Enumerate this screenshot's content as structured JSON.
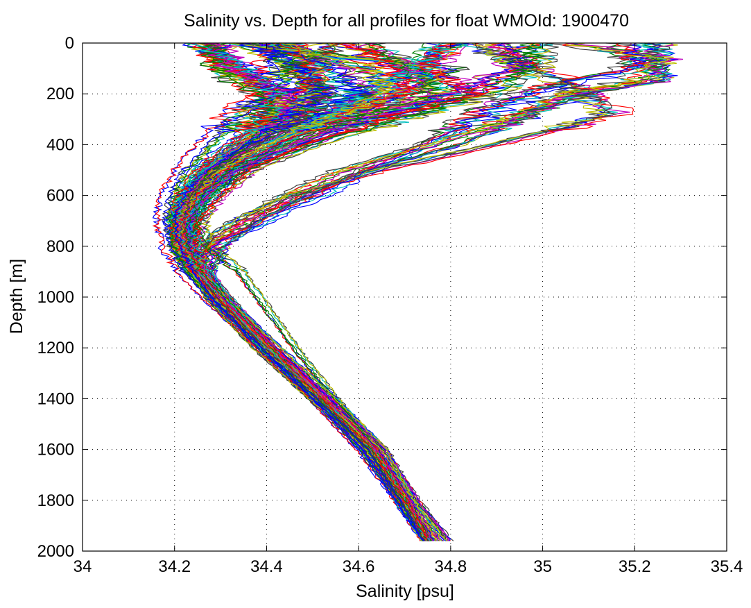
{
  "chart_data": {
    "type": "line",
    "title": "Salinity vs. Depth for all profiles for float WMOId: 1900470",
    "xlabel": "Salinity [psu]",
    "ylabel": "Depth [m]",
    "xlim": [
      34,
      35.4
    ],
    "ylim": [
      0,
      2000
    ],
    "y_reversed": true,
    "grid": true,
    "x_ticks": [
      "34",
      "34.2",
      "34.4",
      "34.6",
      "34.8",
      "35",
      "35.2",
      "35.4"
    ],
    "y_ticks": [
      "0",
      "200",
      "400",
      "600",
      "800",
      "1000",
      "1200",
      "1400",
      "1600",
      "1800",
      "2000"
    ],
    "profile_count_note": "many overlapping float profiles (about 150), colors cycle through the standard plot palette",
    "colors": [
      "#0000ff",
      "#008000",
      "#ff0000",
      "#00bfbf",
      "#bf00bf",
      "#bfbf00",
      "#404040"
    ],
    "series": [
      {
        "color": "#0000ff",
        "depth": [
          0,
          100,
          200,
          300,
          400,
          500,
          600,
          700,
          800,
          900,
          1000,
          1200,
          1400,
          1600,
          1800,
          1960
        ],
        "salinity": [
          34.43,
          34.42,
          34.4,
          34.33,
          34.27,
          34.22,
          34.19,
          34.18,
          34.19,
          34.22,
          34.27,
          34.39,
          34.5,
          34.6,
          34.68,
          34.74
        ]
      },
      {
        "color": "#0000ff",
        "depth": [
          0,
          100,
          180,
          250,
          300,
          400,
          500,
          600,
          650,
          700,
          800,
          900,
          1000,
          1200,
          1400,
          1600,
          1800,
          1960
        ],
        "salinity": [
          35.2,
          35.2,
          35.0,
          34.9,
          34.85,
          34.75,
          34.62,
          34.52,
          34.45,
          34.4,
          34.28,
          34.25,
          34.28,
          34.38,
          34.5,
          34.61,
          34.69,
          34.75
        ]
      },
      {
        "color": "#404040",
        "depth": [
          0,
          150,
          200,
          250,
          300,
          400,
          500,
          600,
          700,
          800,
          900,
          1000,
          1200,
          1400,
          1600,
          1800,
          1960
        ],
        "salinity": [
          35.25,
          35.25,
          35.1,
          35.0,
          34.95,
          34.82,
          34.62,
          34.48,
          34.38,
          34.31,
          34.28,
          34.3,
          34.39,
          34.51,
          34.62,
          34.69,
          34.75
        ]
      },
      {
        "color": "#bfbf00",
        "depth": [
          0,
          60,
          150,
          200,
          260,
          300,
          400,
          500,
          600,
          700,
          800,
          900,
          1000,
          1200,
          1400,
          1600,
          1800,
          1960
        ],
        "salinity": [
          35.05,
          35.25,
          35.2,
          35.05,
          34.98,
          34.92,
          34.75,
          34.56,
          34.44,
          34.34,
          34.27,
          34.25,
          34.28,
          34.39,
          34.52,
          34.64,
          34.71,
          34.77
        ]
      },
      {
        "color": "#404040",
        "depth": [
          0,
          150,
          200,
          270,
          300,
          400,
          500,
          600,
          700,
          800,
          900,
          1000,
          1200,
          1400,
          1600,
          1800,
          1960
        ],
        "salinity": [
          34.85,
          35.05,
          35.1,
          35.15,
          35.12,
          34.9,
          34.65,
          34.46,
          34.34,
          34.26,
          34.25,
          34.28,
          34.38,
          34.5,
          34.62,
          34.7,
          34.75
        ]
      },
      {
        "color": "#bfbf00",
        "depth": [
          0,
          100,
          200,
          300,
          400,
          500,
          600,
          700,
          800,
          900,
          1000,
          1200,
          1400,
          1600,
          1800,
          1960
        ],
        "salinity": [
          34.32,
          34.8,
          34.7,
          34.55,
          34.4,
          34.3,
          34.24,
          34.21,
          34.22,
          34.25,
          34.3,
          34.41,
          34.53,
          34.65,
          34.72,
          34.79
        ]
      },
      {
        "color": "#bf00bf",
        "depth": [
          0,
          100,
          200,
          300,
          400,
          500,
          600,
          700,
          800,
          900,
          1000,
          1200,
          1400,
          1600,
          1800,
          1960
        ],
        "salinity": [
          34.92,
          34.95,
          34.8,
          34.62,
          34.46,
          34.34,
          34.27,
          34.23,
          34.22,
          34.25,
          34.3,
          34.42,
          34.54,
          34.66,
          34.73,
          34.8
        ]
      },
      {
        "color": "#008000",
        "depth": [
          0,
          100,
          200,
          300,
          400,
          500,
          600,
          700,
          800,
          900,
          1000,
          1200,
          1400,
          1600,
          1800,
          1960
        ],
        "salinity": [
          34.98,
          34.97,
          34.88,
          34.68,
          34.5,
          34.36,
          34.28,
          34.25,
          34.27,
          34.34,
          34.38,
          34.46,
          34.55,
          34.64,
          34.71,
          34.76
        ]
      },
      {
        "color": "#ff0000",
        "depth": [
          0,
          100,
          200,
          300,
          400,
          500,
          600,
          700,
          800,
          900,
          1000,
          1200,
          1400,
          1600,
          1800,
          1960
        ],
        "salinity": [
          34.79,
          34.75,
          34.85,
          34.65,
          34.48,
          34.36,
          34.3,
          34.25,
          34.24,
          34.27,
          34.31,
          34.42,
          34.53,
          34.64,
          34.71,
          34.75
        ]
      },
      {
        "color": "#00bfbf",
        "depth": [
          0,
          100,
          200,
          300,
          400,
          500,
          600,
          700,
          800,
          900,
          1000,
          1200,
          1400,
          1600,
          1800,
          1960
        ],
        "salinity": [
          34.8,
          34.72,
          34.6,
          34.52,
          34.42,
          34.32,
          34.26,
          34.23,
          34.24,
          34.27,
          34.31,
          34.41,
          34.52,
          34.63,
          34.7,
          34.75
        ]
      },
      {
        "color": "#008000",
        "depth": [
          0,
          100,
          200,
          300,
          400,
          500,
          600,
          700,
          800,
          900,
          1000,
          1200,
          1400,
          1600,
          1800,
          1960
        ],
        "salinity": [
          34.29,
          34.3,
          34.38,
          34.42,
          34.36,
          34.28,
          34.23,
          34.2,
          34.2,
          34.23,
          34.28,
          34.39,
          34.51,
          34.62,
          34.69,
          34.74
        ]
      },
      {
        "color": "#ff0000",
        "depth": [
          0,
          100,
          200,
          300,
          400,
          500,
          600,
          700,
          800,
          900,
          1000,
          1200,
          1400,
          1600,
          1800,
          1960
        ],
        "salinity": [
          34.45,
          34.5,
          34.48,
          34.4,
          34.33,
          34.26,
          34.22,
          34.2,
          34.21,
          34.24,
          34.29,
          34.4,
          34.52,
          34.63,
          34.7,
          34.75
        ]
      },
      {
        "color": "#0000ff",
        "depth": [
          0,
          100,
          200,
          300,
          400,
          500,
          600,
          700,
          800,
          900,
          1000,
          1200,
          1400,
          1600,
          1800,
          1960
        ],
        "salinity": [
          34.4,
          34.55,
          34.6,
          34.48,
          34.36,
          34.27,
          34.22,
          34.2,
          34.21,
          34.24,
          34.28,
          34.39,
          34.5,
          34.61,
          34.68,
          34.74
        ]
      },
      {
        "color": "#bf00bf",
        "depth": [
          0,
          100,
          200,
          300,
          400,
          500,
          600,
          700,
          800,
          900,
          1000,
          1200,
          1400,
          1600,
          1800,
          1960
        ],
        "salinity": [
          34.27,
          34.32,
          34.45,
          34.43,
          34.35,
          34.27,
          34.23,
          34.21,
          34.22,
          34.25,
          34.3,
          34.41,
          34.53,
          34.64,
          34.71,
          34.76
        ]
      },
      {
        "color": "#404040",
        "depth": [
          0,
          100,
          200,
          300,
          400,
          500,
          600,
          700,
          800,
          900,
          1000,
          1200,
          1400,
          1600,
          1800,
          1960
        ],
        "salinity": [
          34.55,
          34.45,
          34.52,
          34.46,
          34.38,
          34.29,
          34.24,
          34.22,
          34.22,
          34.25,
          34.29,
          34.4,
          34.51,
          34.62,
          34.69,
          34.74
        ]
      },
      {
        "color": "#00bfbf",
        "depth": [
          0,
          100,
          200,
          300,
          400,
          500,
          600,
          700,
          800,
          900,
          1000,
          1200,
          1400,
          1600,
          1800,
          1960
        ],
        "salinity": [
          34.25,
          34.36,
          34.42,
          34.4,
          34.33,
          34.26,
          34.22,
          34.21,
          34.22,
          34.25,
          34.3,
          34.4,
          34.52,
          34.63,
          34.7,
          34.75
        ]
      },
      {
        "color": "#bfbf00",
        "depth": [
          0,
          100,
          200,
          300,
          400,
          500,
          600,
          700,
          800,
          900,
          1000,
          1200,
          1400,
          1600,
          1800,
          1960
        ],
        "salinity": [
          34.42,
          34.62,
          34.66,
          34.52,
          34.4,
          34.3,
          34.25,
          34.22,
          34.22,
          34.26,
          34.31,
          34.43,
          34.55,
          34.66,
          34.72,
          34.78
        ]
      },
      {
        "color": "#008000",
        "depth": [
          0,
          100,
          200,
          300,
          400,
          500,
          600,
          700,
          800,
          900,
          1000,
          1200,
          1400,
          1600,
          1800,
          1960
        ],
        "salinity": [
          34.6,
          34.7,
          34.75,
          34.58,
          34.44,
          34.32,
          34.26,
          34.23,
          34.23,
          34.26,
          34.31,
          34.41,
          34.52,
          34.63,
          34.7,
          34.75
        ]
      },
      {
        "color": "#ff0000",
        "depth": [
          0,
          100,
          200,
          300,
          400,
          500,
          600,
          700,
          800,
          900,
          1000,
          1200,
          1400,
          1600,
          1800,
          1960
        ],
        "salinity": [
          34.58,
          34.68,
          34.7,
          34.55,
          34.42,
          34.31,
          34.25,
          34.22,
          34.22,
          34.26,
          34.3,
          34.41,
          34.52,
          34.63,
          34.7,
          34.75
        ]
      },
      {
        "color": "#0000ff",
        "depth": [
          0,
          100,
          200,
          300,
          400,
          500,
          600,
          700,
          800,
          900,
          1000,
          1200,
          1400,
          1600,
          1800,
          1960
        ],
        "salinity": [
          34.35,
          34.48,
          34.52,
          34.44,
          34.35,
          34.27,
          34.22,
          34.2,
          34.21,
          34.24,
          34.28,
          34.39,
          34.51,
          34.62,
          34.69,
          34.74
        ]
      }
    ]
  }
}
